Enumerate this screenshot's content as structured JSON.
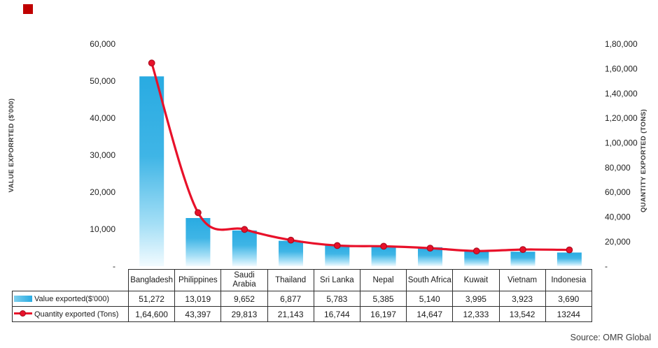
{
  "brand_marker": {
    "color": "#c00000"
  },
  "chart_data": {
    "type": "bar",
    "subtype": "bar+line combo, dual axis",
    "title": "",
    "categories": [
      "Bangladesh",
      "Philippines",
      "Saudi Arabia",
      "Thailand",
      "Sri Lanka",
      "Nepal",
      "South Africa",
      "Kuwait",
      "Vietnam",
      "Indonesia"
    ],
    "series": [
      {
        "name": "Value exported($'000)",
        "chart": "bar",
        "axis": "left",
        "color": "#29abe2",
        "values": [
          51272,
          13019,
          9652,
          6877,
          5783,
          5385,
          5140,
          3995,
          3923,
          3690
        ]
      },
      {
        "name": "Quantity exported (Tons)",
        "chart": "line",
        "axis": "right",
        "color": "#e8112a",
        "values": [
          164600,
          43397,
          29813,
          21143,
          16744,
          16197,
          14647,
          12333,
          13542,
          13244
        ]
      }
    ],
    "left_axis": {
      "title": "VALUE EXPORRTED ($'000)",
      "min": 0,
      "max": 60000,
      "tick_labels": [
        "60,000",
        "50,000",
        "40,000",
        "30,000",
        "20,000",
        "10,000",
        "-"
      ]
    },
    "right_axis": {
      "title": "QUANTITY EXPORTED (TONS)",
      "min": 0,
      "max": 180000,
      "tick_labels": [
        "1,80,000",
        "1,60,000",
        "1,40,000",
        "1,20,000",
        "1,00,000",
        "80,000",
        "60,000",
        "40,000",
        "20,000",
        "-"
      ]
    },
    "gridlines": false,
    "legend_position": "data-table row labels"
  },
  "data_table": {
    "rows": [
      {
        "label": "Value exported($'000)",
        "marker": "bar",
        "values": [
          "51,272",
          "13,019",
          "9,652",
          "6,877",
          "5,783",
          "5,385",
          "5,140",
          "3,995",
          "3,923",
          "3,690"
        ]
      },
      {
        "label": "Quantity exported (Tons)",
        "marker": "line",
        "values": [
          "1,64,600",
          "43,397",
          "29,813",
          "21,143",
          "16,744",
          "16,197",
          "14,647",
          "12,333",
          "13,542",
          "13244"
        ]
      }
    ]
  },
  "source_label": "Source: OMR Global"
}
